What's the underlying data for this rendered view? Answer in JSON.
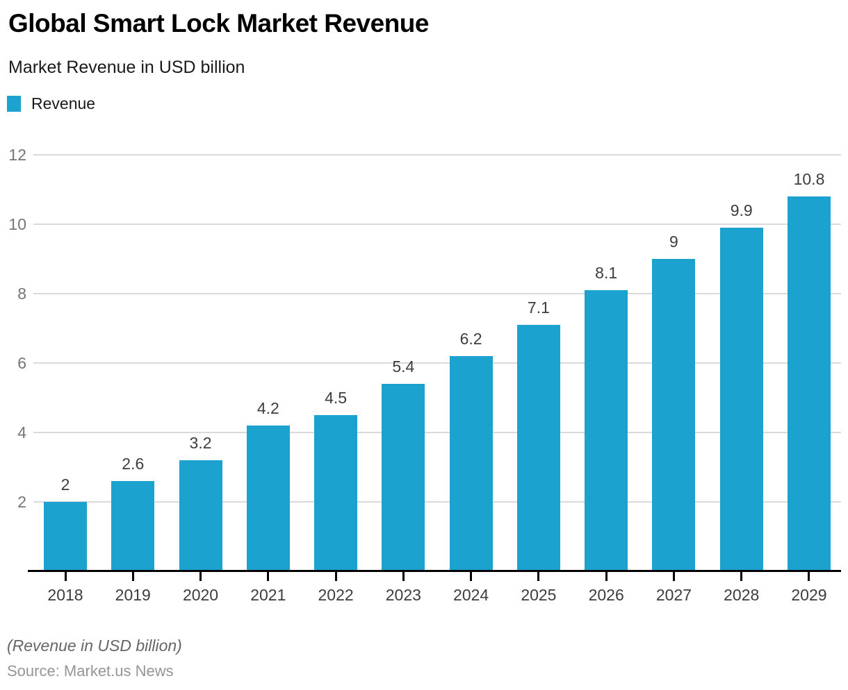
{
  "header": {
    "title": "Global Smart Lock Market Revenue",
    "subtitle": "Market Revenue in USD billion"
  },
  "legend": {
    "items": [
      {
        "label": "Revenue",
        "color": "#1CA2CE"
      }
    ]
  },
  "chart_data": {
    "type": "bar",
    "title": "Global Smart Lock Market Revenue",
    "subtitle": "Market Revenue in USD billion",
    "categories": [
      "2018",
      "2019",
      "2020",
      "2021",
      "2022",
      "2023",
      "2024",
      "2025",
      "2026",
      "2027",
      "2028",
      "2029"
    ],
    "series": [
      {
        "name": "Revenue",
        "values": [
          2,
          2.6,
          3.2,
          4.2,
          4.5,
          5.4,
          6.2,
          7.1,
          8.1,
          9,
          9.9,
          10.8
        ]
      }
    ],
    "xlabel": "",
    "ylabel": "",
    "ylim": [
      0,
      12
    ],
    "y_ticks": [
      2,
      4,
      6,
      8,
      10,
      12
    ],
    "grid": "horizontal",
    "legend_position": "top-left",
    "bar_color": "#1CA2CE",
    "value_labels": true
  },
  "footer": {
    "note": "(Revenue in USD billion)",
    "source": "Source: Market.us News"
  }
}
